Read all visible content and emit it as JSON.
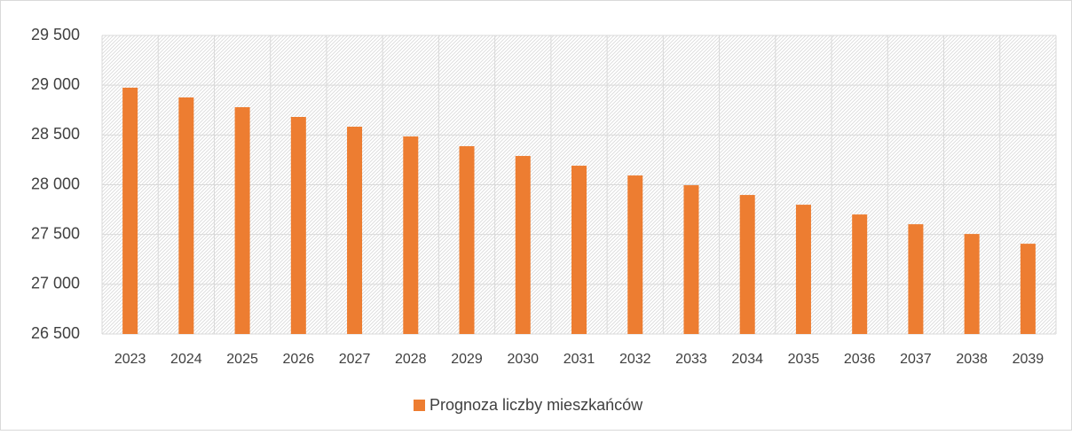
{
  "chart_data": {
    "type": "bar",
    "categories": [
      "2023",
      "2024",
      "2025",
      "2026",
      "2027",
      "2028",
      "2029",
      "2030",
      "2031",
      "2032",
      "2033",
      "2034",
      "2035",
      "2036",
      "2037",
      "2038",
      "2039"
    ],
    "series": [
      {
        "name": "Prognoza liczby mieszkańców",
        "color": "#ed7d31",
        "values": [
          28975,
          28877,
          28779,
          28681,
          28583,
          28485,
          28387,
          28289,
          28191,
          28093,
          27995,
          27897,
          27799,
          27701,
          27603,
          27505,
          27407
        ]
      }
    ],
    "ylim": [
      26500,
      29500
    ],
    "yticks": [
      {
        "value": 26500,
        "label": "26 500"
      },
      {
        "value": 27000,
        "label": "27 000"
      },
      {
        "value": 27500,
        "label": "27 500"
      },
      {
        "value": 28000,
        "label": "28 000"
      },
      {
        "value": 28500,
        "label": "28 500"
      },
      {
        "value": 29000,
        "label": "29 000"
      },
      {
        "value": 29500,
        "label": "29 500"
      }
    ],
    "grid": true,
    "legend": "bottom"
  }
}
